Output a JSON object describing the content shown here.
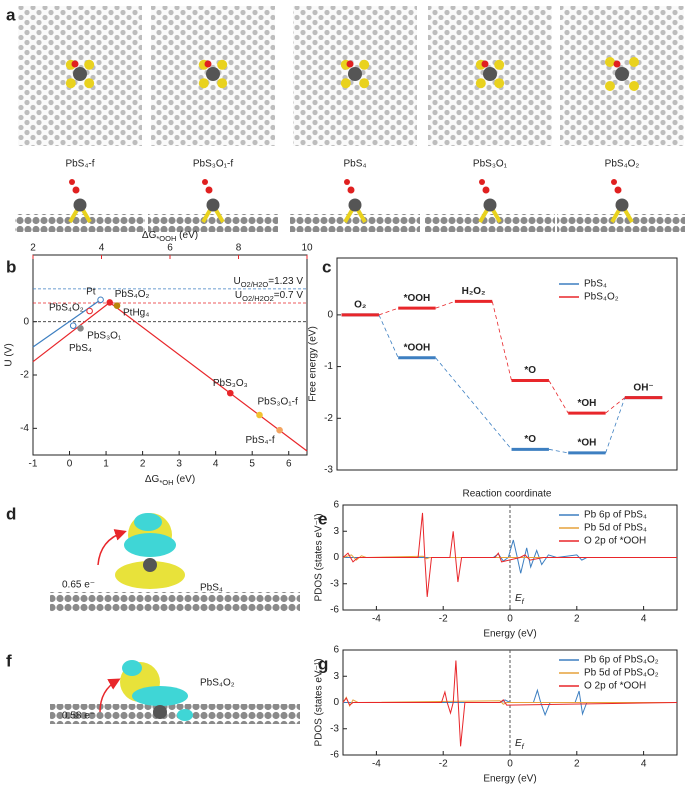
{
  "panel_letters": [
    "a",
    "b",
    "c",
    "d",
    "e",
    "f",
    "g"
  ],
  "structures": [
    "PbS₄-f",
    "PbS₃O₁-f",
    "PbS₄",
    "PbS₃O₁",
    "PbS₄O₂"
  ],
  "charge_panels": [
    {
      "transfer": "0.65 e⁻",
      "label": "PbS₄"
    },
    {
      "transfer": "0.58 e⁻",
      "label": "PbS₄O₂"
    }
  ],
  "chart_data": [
    {
      "type": "scatter",
      "xlabel": {
        "main": "ΔG",
        "sub": "*OH",
        "unit": " (eV)"
      },
      "x2label": {
        "main": "ΔG",
        "sub": "*OOH",
        "unit": " (eV)"
      },
      "ylabel": "U (V)",
      "xlim": [
        -1,
        6.5
      ],
      "xticks": [
        -1,
        0,
        1,
        2,
        3,
        4,
        5,
        6
      ],
      "x2lim": [
        2,
        10
      ],
      "x2ticks": [
        2,
        4,
        6,
        8,
        10
      ],
      "x2color": "#e8262a",
      "ylim": [
        -5,
        2.5
      ],
      "yticks": [
        -4,
        -2,
        0
      ],
      "reference_lines": [
        {
          "value": 1.23,
          "color": "#3d7fc1",
          "label": {
            "main": "U",
            "sub": "O2/H2O",
            "rest": "=1.23 V"
          }
        },
        {
          "value": 0.7,
          "color": "#e8262a",
          "label": {
            "main": "U",
            "sub": "O2/H2O2",
            "rest": "=0.7 V"
          }
        },
        {
          "value": 0,
          "color": "#333333"
        }
      ],
      "lines": [
        {
          "color": "#3d7fc1",
          "x": [
            -1,
            0.85
          ],
          "values": [
            -0.95,
            0.82
          ]
        },
        {
          "color": "#e8262a",
          "x": [
            -1,
            1.1
          ],
          "values": [
            -1.5,
            0.72
          ]
        },
        {
          "color": "#e8262a",
          "x": [
            1.1,
            6.5
          ],
          "values": [
            0.72,
            -4.85
          ]
        }
      ],
      "points": [
        {
          "name": "Pt",
          "x": 0.85,
          "value": 0.82,
          "color": "#3d7fc1",
          "filled": false
        },
        {
          "name": "PbS₄O₂",
          "x": 1.1,
          "value": 0.72,
          "color": "#e8262a",
          "filled": true
        },
        {
          "name": "PtHg₄",
          "x": 1.3,
          "value": 0.6,
          "color": "#b8860b",
          "filled": true
        },
        {
          "name": "PbS₄O₂",
          "x": 0.55,
          "value": 0.4,
          "color": "#e8262a",
          "filled": false
        },
        {
          "name": "PbS₃O₁",
          "x": 0.1,
          "value": -0.15,
          "color": "#3d7fc1",
          "filled": false
        },
        {
          "name": "PbS₄",
          "x": 0.3,
          "value": -0.25,
          "color": "#888888",
          "filled": true
        },
        {
          "name": "PbS₃O₃",
          "x": 4.4,
          "value": -2.68,
          "color": "#e8262a",
          "filled": true
        },
        {
          "name": "PbS₃O₁-f",
          "x": 5.2,
          "value": -3.5,
          "color": "#f2c230",
          "filled": true
        },
        {
          "name": "PbS₄-f",
          "x": 5.75,
          "value": -4.07,
          "color": "#f4a460",
          "filled": true
        }
      ]
    },
    {
      "type": "step",
      "ylabel": "Free energy (eV)",
      "xlabel": "Reaction coordinate",
      "ylim": [
        -3,
        1.1
      ],
      "yticks": [
        -3,
        -2,
        -1,
        0
      ],
      "legend": "upper right",
      "series": [
        {
          "name": "PbS₄",
          "color": "#3d7fc1",
          "values": [
            0,
            -0.83,
            null,
            -2.6,
            -2.67,
            -1.6
          ],
          "state_labels": [
            null,
            "*OOH",
            null,
            "*O",
            "*OH",
            null
          ]
        },
        {
          "name": "PbS₄O₂",
          "color": "#e8262a",
          "values": [
            0,
            0.13,
            0.26,
            -1.27,
            -1.9,
            -1.6
          ],
          "state_labels": [
            "O₂",
            "*OOH",
            "H₂O₂",
            "*O",
            "*OH",
            "OH⁻"
          ]
        }
      ]
    },
    {
      "type": "line",
      "ylabel": "PDOS (states eV⁻¹)",
      "xlabel": "Energy (eV)",
      "xlim": [
        -5,
        5
      ],
      "xticks": [
        -4,
        -2,
        0,
        2,
        4
      ],
      "ylim": [
        -6,
        6
      ],
      "yticks": [
        -6,
        -3,
        0,
        3,
        6
      ],
      "fermi": {
        "value": 0,
        "main": "E",
        "sub": "f"
      },
      "legend": "upper right",
      "series": [
        {
          "name": "Pb 6p of PbS₄",
          "color": "#3d7fc1",
          "x": [
            -5,
            -0.5,
            -0.35,
            -0.2,
            -0.05,
            0.1,
            0.22,
            0.32,
            0.5,
            0.62,
            0.8,
            0.95,
            1.15,
            1.4,
            2.0,
            2.15,
            2.3,
            5
          ],
          "values": [
            0,
            0,
            0.4,
            -0.4,
            0,
            2.0,
            0,
            -1.8,
            1.1,
            -1.1,
            0.8,
            -0.8,
            0.3,
            0,
            0.3,
            -0.3,
            0,
            0
          ]
        },
        {
          "name": "Pb 5d of PbS₄",
          "color": "#e6a23c",
          "x": [
            -5,
            -4.75,
            -4.6,
            -4.45,
            -4.3,
            -2.6,
            -2.5,
            -2.4,
            5
          ],
          "values": [
            0,
            0.3,
            -0.3,
            0.2,
            0,
            0.15,
            -0.15,
            0,
            0
          ]
        },
        {
          "name": "O 2p of *OOH",
          "color": "#e8262a",
          "x": [
            -5,
            -4.85,
            -4.7,
            -4.55,
            -2.75,
            -2.62,
            -2.55,
            -2.48,
            -2.35,
            -1.8,
            -1.7,
            -1.63,
            -1.56,
            -1.45,
            -0.45,
            -0.35,
            -0.25,
            0.3,
            0.45,
            0.6,
            1.0,
            5
          ],
          "values": [
            0,
            0.5,
            -0.5,
            0,
            0,
            5.1,
            0,
            -4.5,
            0,
            0,
            3.0,
            0,
            -2.8,
            0,
            0,
            0.5,
            -0.5,
            0,
            0.3,
            -0.3,
            0,
            0
          ]
        }
      ]
    },
    {
      "type": "line",
      "ylabel": "PDOS (states eV⁻¹)",
      "xlabel": "Energy (eV)",
      "xlim": [
        -5,
        5
      ],
      "xticks": [
        -4,
        -2,
        0,
        2,
        4
      ],
      "ylim": [
        -6,
        6
      ],
      "yticks": [
        -6,
        -3,
        0,
        3,
        6
      ],
      "fermi": {
        "value": 0,
        "main": "E",
        "sub": "f"
      },
      "legend": "upper right",
      "series": [
        {
          "name": "Pb 6p of PbS₄O₂",
          "color": "#3d7fc1",
          "x": [
            -5,
            -0.3,
            -0.15,
            0,
            0.7,
            0.82,
            0.92,
            1.05,
            1.2,
            1.95,
            2.07,
            2.17,
            2.3,
            5
          ],
          "values": [
            0,
            0,
            0.3,
            0,
            0,
            1.4,
            0,
            -1.4,
            0,
            0,
            1.3,
            -1.3,
            0,
            0
          ]
        },
        {
          "name": "Pb 5d of PbS₄O₂",
          "color": "#e6a23c",
          "x": [
            -5,
            -4.9,
            -4.8,
            -4.7,
            -4.55,
            -0.3,
            -0.2,
            -0.1,
            5
          ],
          "values": [
            0,
            0.6,
            -0.4,
            0.3,
            0,
            0.2,
            -0.2,
            0,
            0
          ]
        },
        {
          "name": "O 2p of *OOH",
          "color": "#e8262a",
          "x": [
            -5,
            -4.9,
            -4.8,
            -4.7,
            -2.05,
            -1.95,
            -1.88,
            -1.78,
            -1.7,
            -1.62,
            -1.55,
            -1.48,
            -1.35,
            -0.3,
            -0.2,
            -0.1,
            5
          ],
          "values": [
            0,
            0.5,
            -0.3,
            0,
            0,
            1.2,
            0,
            -1.2,
            0,
            4.8,
            0,
            -5.0,
            0,
            0,
            0.3,
            -0.3,
            0
          ]
        }
      ]
    }
  ]
}
